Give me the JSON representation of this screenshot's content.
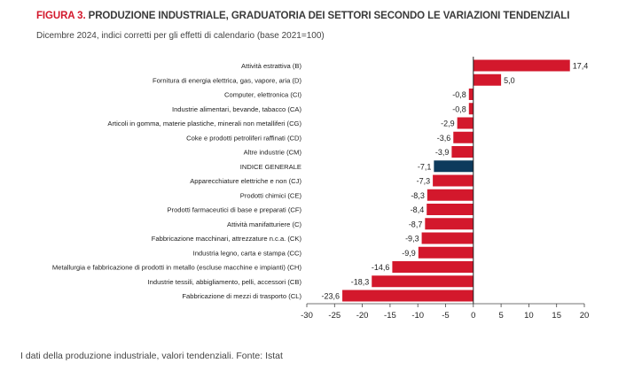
{
  "header": {
    "figure_label": "FIGURA 3.",
    "title": "PRODUZIONE INDUSTRIALE, GRADUATORIA DEI SETTORI SECONDO LE VARIAZIONI TENDENZIALI",
    "subtitle": "Dicembre 2024, indici corretti per gli effetti di calendario (base 2021=100)"
  },
  "footer": {
    "source": "I dati della produzione industriale, valori tendenziali. Fonte: Istat"
  },
  "colors": {
    "bar": "#d3182c",
    "highlight_bar": "#0d3a5c",
    "title_accent": "#d3182c"
  },
  "chart_data": {
    "type": "bar",
    "orientation": "horizontal",
    "categories": [
      "Attività estrattiva (B)",
      "Fornitura di energia elettrica, gas, vapore, aria (D)",
      "Computer, elettronica (CI)",
      "Industrie alimentari, bevande, tabacco (CA)",
      "Articoli in gomma, materie plastiche, minerali non metalliferi (CG)",
      "Coke e prodotti petroliferi raffinati (CD)",
      "Altre industrie (CM)",
      "INDICE GENERALE",
      "Apparecchiature elettriche e non (CJ)",
      "Prodotti chimici (CE)",
      "Prodotti farmaceutici di base e preparati (CF)",
      "Attività manifatturiere (C)",
      "Fabbricazione macchinari, attrezzature n.c.a. (CK)",
      "Industria legno, carta e stampa (CC)",
      "Metallurgia e fabbricazione di prodotti in metallo (escluse macchine e impianti) (CH)",
      "Industrie tessili, abbigliamento, pelli, accessori (CB)",
      "Fabbricazione di mezzi di trasporto (CL)"
    ],
    "values": [
      17.4,
      5.0,
      -0.8,
      -0.8,
      -2.9,
      -3.6,
      -3.9,
      -7.1,
      -7.3,
      -8.3,
      -8.4,
      -8.7,
      -9.3,
      -9.9,
      -14.6,
      -18.3,
      -23.6
    ],
    "value_labels": [
      "17,4",
      "5,0",
      "-0,8",
      "-0,8",
      "-2,9",
      "-3,6",
      "-3,9",
      "-7,1",
      "-7,3",
      "-8,3",
      "-8,4",
      "-8,7",
      "-9,3",
      "-9,9",
      "-14,6",
      "-18,3",
      "-23,6"
    ],
    "highlight": "INDICE GENERALE",
    "xlim": [
      -30,
      20
    ],
    "xticks": [
      -30,
      -25,
      -20,
      -15,
      -10,
      -5,
      0,
      5,
      10,
      15,
      20
    ],
    "grid": false,
    "legend": "none"
  }
}
